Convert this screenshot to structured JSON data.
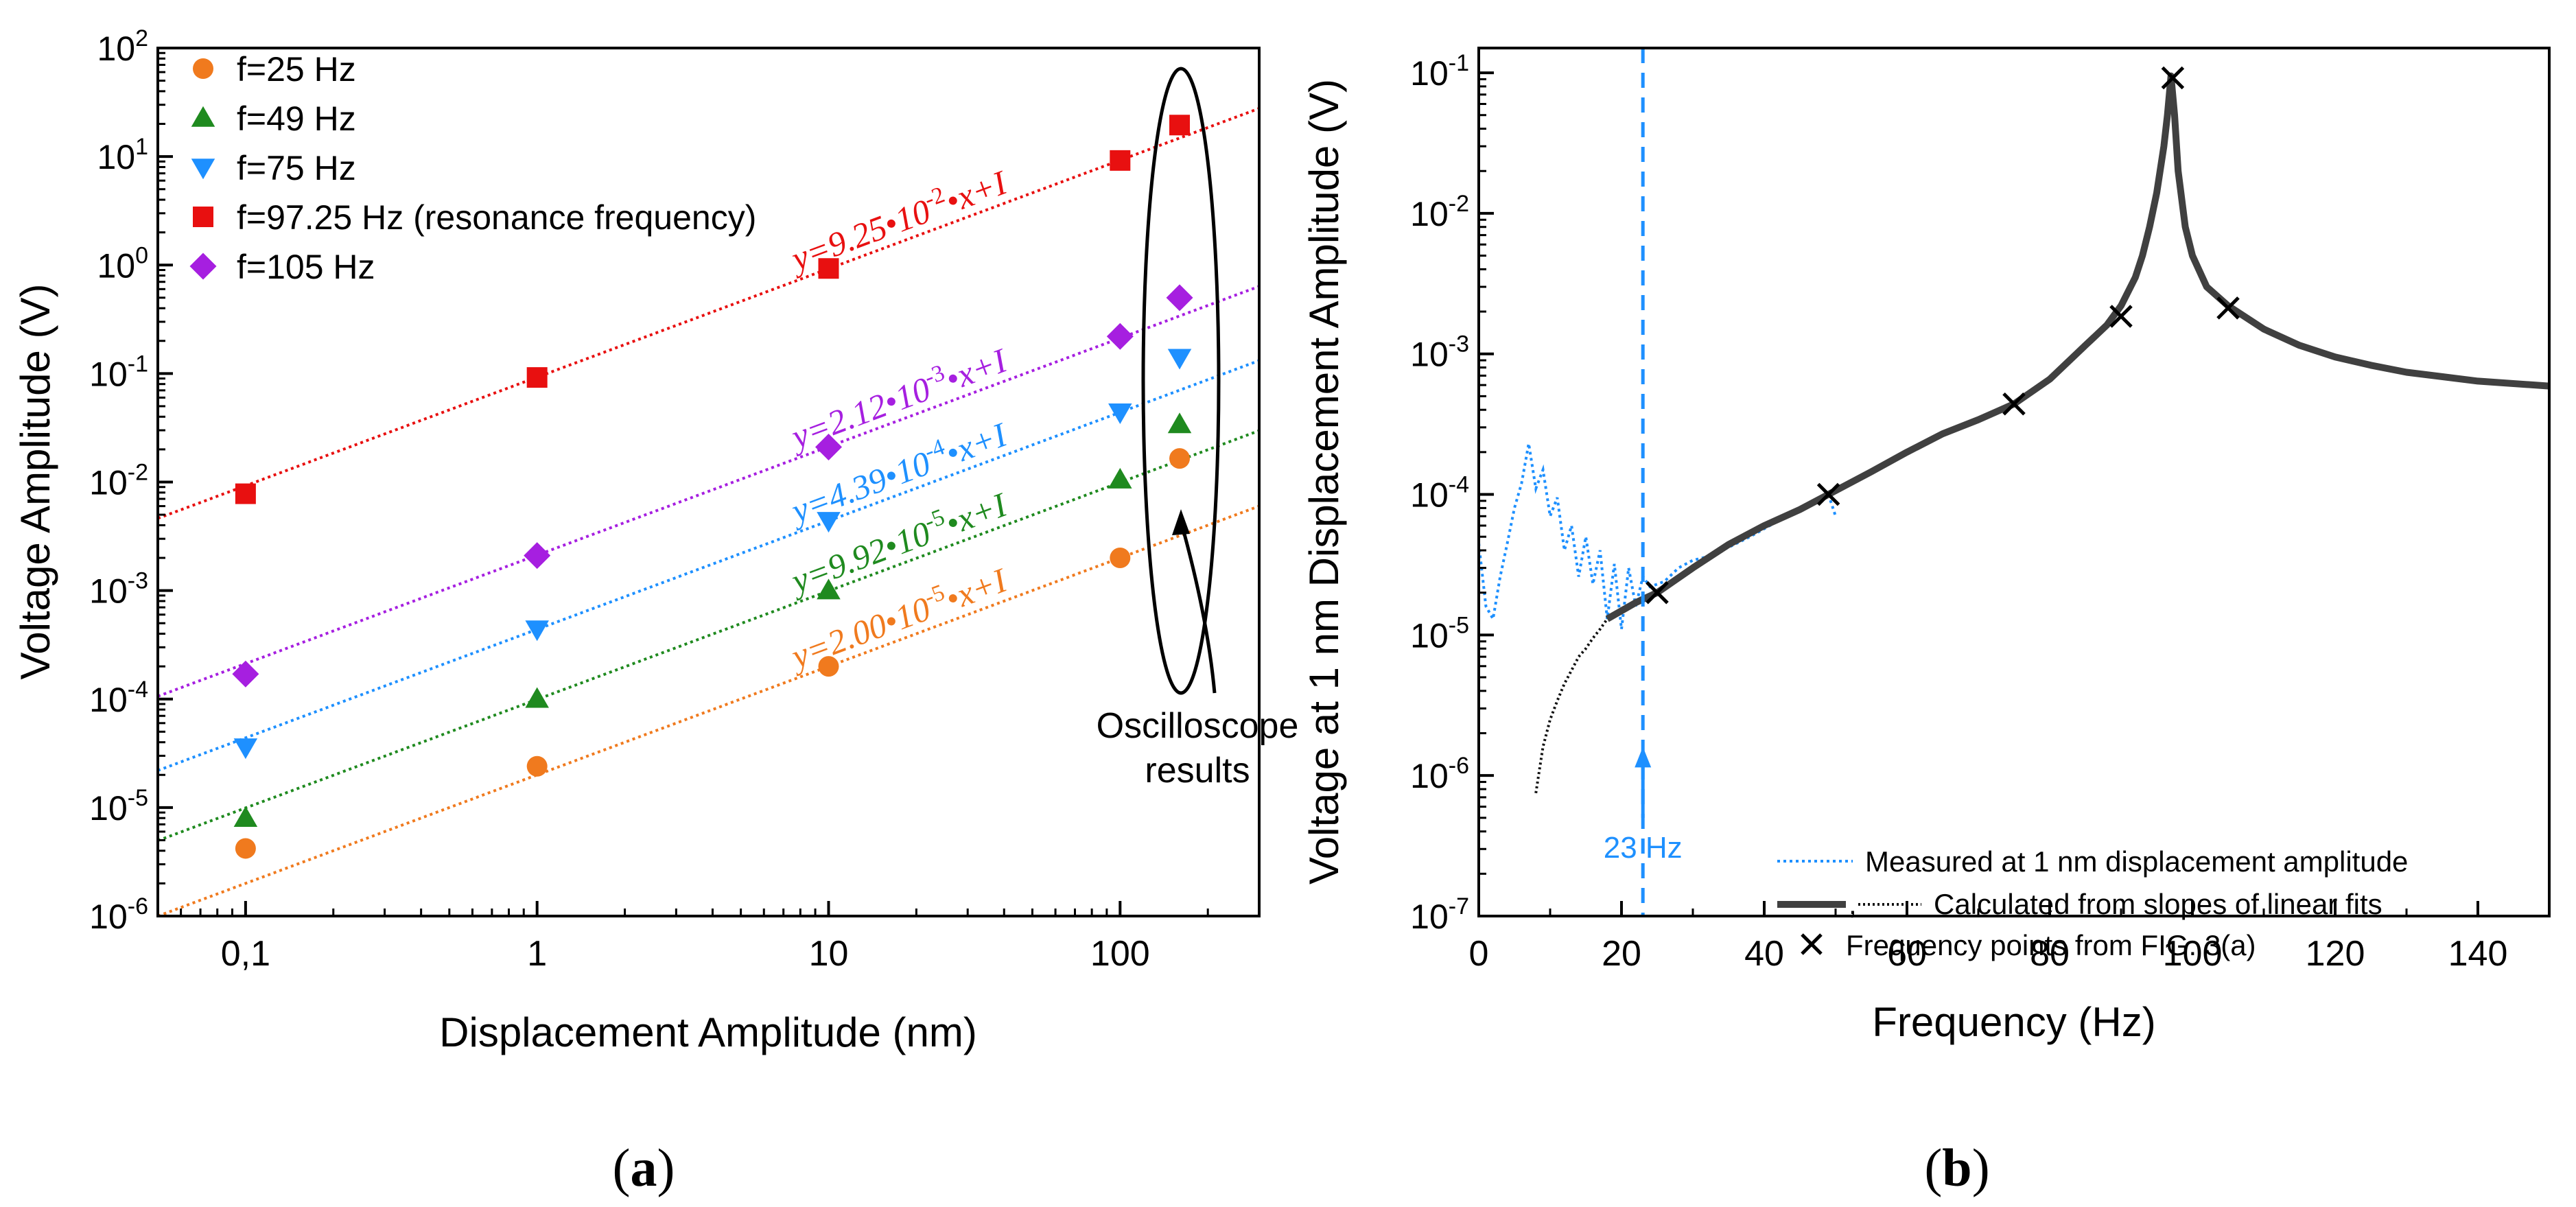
{
  "chart_data": [
    {
      "panel": "a",
      "type": "scatter",
      "xscale": "log",
      "yscale": "log",
      "xlim": [
        0.05,
        300
      ],
      "ylim": [
        1e-06,
        100
      ],
      "xlabel": "Displacement Amplitude (nm)",
      "ylabel": "Voltage Amplitude (V)",
      "xticks": [
        {
          "v": 0.1,
          "label": "0,1"
        },
        {
          "v": 1,
          "label": "1"
        },
        {
          "v": 10,
          "label": "10"
        },
        {
          "v": 100,
          "label": "100"
        }
      ],
      "yticks": [
        {
          "v": 1e-06,
          "base": "10",
          "exp": "-6"
        },
        {
          "v": 1e-05,
          "base": "10",
          "exp": "-5"
        },
        {
          "v": 0.0001,
          "base": "10",
          "exp": "-4"
        },
        {
          "v": 0.001,
          "base": "10",
          "exp": "-3"
        },
        {
          "v": 0.01,
          "base": "10",
          "exp": "-2"
        },
        {
          "v": 0.1,
          "base": "10",
          "exp": "-1"
        },
        {
          "v": 1,
          "base": "10",
          "exp": "0"
        },
        {
          "v": 10,
          "base": "10",
          "exp": "1"
        },
        {
          "v": 100,
          "base": "10",
          "exp": "2"
        }
      ],
      "series": [
        {
          "name": "f=25 Hz",
          "marker": "circle",
          "color": "#f07a1e",
          "x": [
            0.1,
            1,
            10,
            100,
            160
          ],
          "y": [
            4.2e-06,
            2.4e-05,
            0.0002,
            0.002,
            0.0165
          ],
          "fit_slope": 2e-05,
          "fit_label": {
            "pre": "y=2.00•10",
            "exp": "-5",
            "post": "•x+I"
          }
        },
        {
          "name": "f=49 Hz",
          "marker": "triangle-up",
          "color": "#1f8a1f",
          "x": [
            0.1,
            1,
            10,
            100,
            160
          ],
          "y": [
            8e-06,
            0.0001,
            0.001,
            0.0105,
            0.034
          ],
          "fit_slope": 9.92e-05,
          "fit_label": {
            "pre": "y=9.92•10",
            "exp": "-5",
            "post": "•x+I"
          }
        },
        {
          "name": "f=75 Hz",
          "marker": "triangle-down",
          "color": "#1e90ff",
          "x": [
            0.1,
            1,
            10,
            100,
            160
          ],
          "y": [
            3.6e-05,
            0.00044,
            0.0044,
            0.044,
            0.14
          ],
          "fit_slope": 0.000439,
          "fit_label": {
            "pre": "y=4.39•10",
            "exp": "-4",
            "post": "•x+I"
          }
        },
        {
          "name": "f=97.25 Hz (resonance frequency)",
          "marker": "square",
          "color": "#e81010",
          "x": [
            0.1,
            1,
            10,
            100,
            160
          ],
          "y": [
            0.0078,
            0.092,
            0.93,
            9.2,
            19.5
          ],
          "fit_slope": 0.0925,
          "fit_label": {
            "pre": "y=9.25•10",
            "exp": "-2",
            "post": "•x+I"
          }
        },
        {
          "name": "f=105 Hz",
          "marker": "diamond",
          "color": "#a61fe0",
          "x": [
            0.1,
            1,
            10,
            100,
            160
          ],
          "y": [
            0.00017,
            0.0021,
            0.021,
            0.22,
            0.5
          ],
          "fit_slope": 0.00212,
          "fit_label": {
            "pre": "y=2.12•10",
            "exp": "-3",
            "post": "•x+I"
          }
        }
      ],
      "annotation": {
        "line1": "Oscilloscope",
        "line2": "results"
      },
      "caption": {
        "open": "(",
        "letter": "a",
        "close": ")"
      }
    },
    {
      "panel": "b",
      "type": "line",
      "xscale": "linear",
      "yscale": "log",
      "xlim": [
        0,
        150
      ],
      "ylim": [
        1e-07,
        0.15
      ],
      "xlabel": "Frequency (Hz)",
      "ylabel": "Voltage at 1 nm Displacement Amplitude (V)",
      "xticks": [
        0,
        20,
        40,
        60,
        80,
        100,
        120,
        140
      ],
      "yticks": [
        {
          "v": 1e-07,
          "base": "10",
          "exp": "-7"
        },
        {
          "v": 1e-06,
          "base": "10",
          "exp": "-6"
        },
        {
          "v": 1e-05,
          "base": "10",
          "exp": "-5"
        },
        {
          "v": 0.0001,
          "base": "10",
          "exp": "-4"
        },
        {
          "v": 0.001,
          "base": "10",
          "exp": "-3"
        },
        {
          "v": 0.01,
          "base": "10",
          "exp": "-2"
        },
        {
          "v": 0.1,
          "base": "10",
          "exp": "-1"
        }
      ],
      "measured": {
        "label": "Measured at 1 nm displacement amplitude",
        "color": "#1e90ff",
        "x": [
          0,
          1,
          2,
          3,
          4,
          5,
          6,
          7,
          8,
          9,
          10,
          11,
          12,
          13,
          14,
          15,
          16,
          17,
          18,
          19,
          20,
          21,
          22,
          23,
          24,
          26,
          28,
          30,
          32,
          35,
          38,
          42,
          46,
          49,
          50
        ],
        "y": [
          4.5e-05,
          1.6e-05,
          1.3e-05,
          2.6e-05,
          4.5e-05,
          8e-05,
          0.00012,
          0.00023,
          0.00011,
          0.00015,
          7e-05,
          9.5e-05,
          4e-05,
          6e-05,
          2.6e-05,
          5e-05,
          2.3e-05,
          4e-05,
          1.3e-05,
          3.2e-05,
          1.1e-05,
          3e-05,
          1.6e-05,
          2.6e-05,
          2.2e-05,
          2.4e-05,
          3e-05,
          3.4e-05,
          3.6e-05,
          4.2e-05,
          5e-05,
          6.5e-05,
          8.2e-05,
          0.0001,
          7e-05
        ]
      },
      "calculated": {
        "label": "Calculated from slopes of linear fits",
        "sep": ",",
        "color": "#404040",
        "x": [
          18,
          22,
          25,
          30,
          35,
          40,
          45,
          49,
          55,
          60,
          65,
          70,
          75,
          80,
          85,
          88,
          90,
          92,
          93,
          94,
          95,
          96,
          96.5,
          97,
          97.5,
          98,
          99,
          100,
          102,
          105,
          110,
          115,
          120,
          125,
          130,
          140,
          150
        ],
        "y": [
          1.3e-05,
          1.7e-05,
          2e-05,
          3e-05,
          4.4e-05,
          6e-05,
          7.8e-05,
          0.0001,
          0.000145,
          0.0002,
          0.00027,
          0.00034,
          0.00044,
          0.00066,
          0.00115,
          0.0016,
          0.0022,
          0.0035,
          0.005,
          0.008,
          0.014,
          0.03,
          0.05,
          0.095,
          0.05,
          0.02,
          0.008,
          0.005,
          0.003,
          0.0022,
          0.0015,
          0.00115,
          0.00095,
          0.00083,
          0.00074,
          0.00064,
          0.00059
        ]
      },
      "calculated_low": {
        "color": "#111111",
        "x": [
          8,
          9,
          10,
          11,
          12,
          13,
          14,
          15,
          16,
          17,
          18
        ],
        "y": [
          7.5e-07,
          1.6e-06,
          2.5e-06,
          3.4e-06,
          4.5e-06,
          5.6e-06,
          7e-06,
          8e-06,
          9.5e-06,
          1.1e-05,
          1.3e-05
        ]
      },
      "freq_points": {
        "label": "Frequency points from FIG. 3(a)",
        "x": [
          25,
          49,
          75,
          90,
          97.25,
          105
        ],
        "y": [
          2e-05,
          0.0001,
          0.00044,
          0.00185,
          0.092,
          0.00212
        ]
      },
      "vline": {
        "x": 23,
        "label": "23 Hz",
        "color": "#1e90ff"
      },
      "caption": {
        "open": "(",
        "letter": "b",
        "close": ")"
      }
    }
  ]
}
